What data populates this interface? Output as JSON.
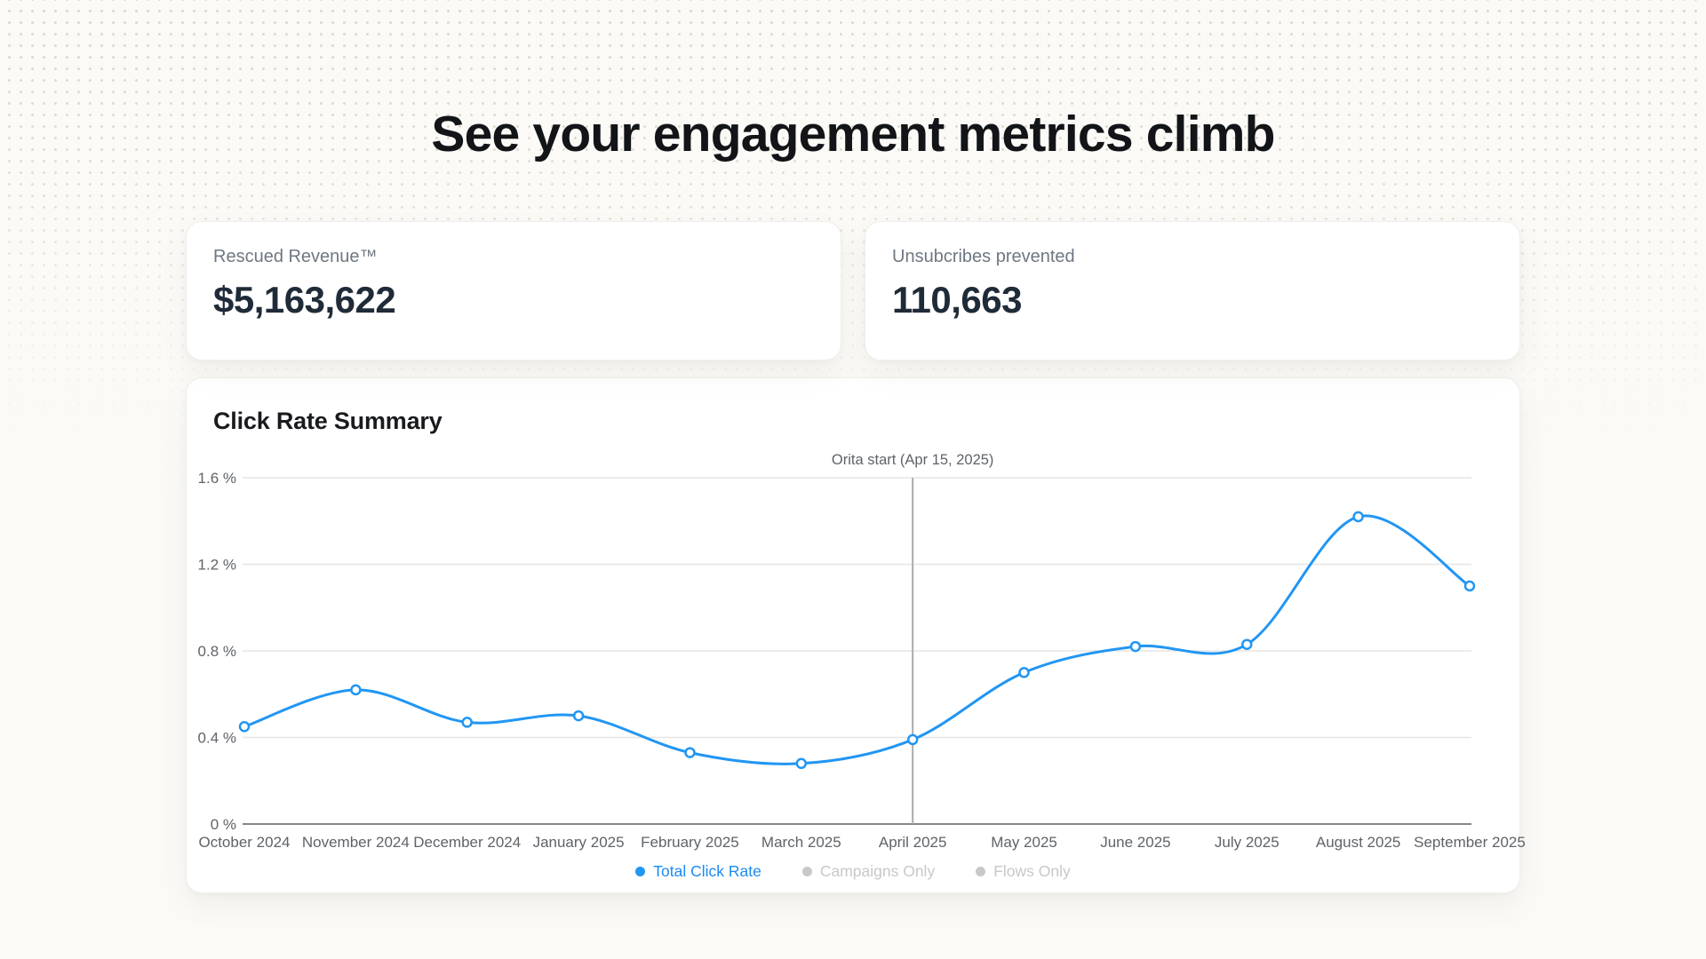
{
  "page": {
    "title": "See your engagement metrics climb"
  },
  "metrics": [
    {
      "label": "Rescued Revenue™",
      "value": "$5,163,622"
    },
    {
      "label": "Unsubcribes prevented",
      "value": "110,663"
    }
  ],
  "chart_card": {
    "title": "Click Rate Summary"
  },
  "chart_data": {
    "type": "line",
    "title": "Click Rate Summary",
    "categories": [
      "October 2024",
      "November 2024",
      "December 2024",
      "January 2025",
      "February 2025",
      "March 2025",
      "April 2025",
      "May 2025",
      "June 2025",
      "July 2025",
      "August 2025",
      "September 2025"
    ],
    "series": [
      {
        "name": "Total Click Rate",
        "values": [
          0.45,
          0.62,
          0.47,
          0.5,
          0.33,
          0.28,
          0.39,
          0.7,
          0.82,
          0.83,
          1.42,
          1.1
        ]
      }
    ],
    "xlabel": "",
    "ylabel": "",
    "ylim": [
      0,
      1.6
    ],
    "yticks": [
      0,
      0.4,
      0.8,
      1.2,
      1.6
    ],
    "ytick_labels": [
      "0 %",
      "0.4 %",
      "0.8 %",
      "1.2 %",
      "1.6 %"
    ],
    "grid": true,
    "legend_position": "bottom",
    "annotation": {
      "label": "Orita start (Apr 15, 2025)",
      "category": "April 2025"
    },
    "legend": [
      {
        "label": "Total Click Rate",
        "active": true
      },
      {
        "label": "Campaigns Only",
        "active": false
      },
      {
        "label": "Flows Only",
        "active": false
      }
    ],
    "colors": {
      "line": "#2196f3",
      "legend_active_text": "#1b8af0",
      "inactive": "#c6c8ca",
      "grid": "#e7e6e3",
      "axis": "#85878a",
      "annotation_line": "#a8abae",
      "label": "#5f6368",
      "marker_fill": "#ffffff"
    }
  }
}
